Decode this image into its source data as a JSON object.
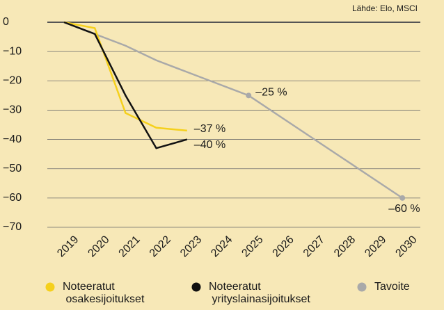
{
  "chart_data": {
    "type": "line",
    "source": "Lähde: Elo, MSCI",
    "categories": [
      "2019",
      "2020",
      "2021",
      "2022",
      "2023",
      "2024",
      "2025",
      "2026",
      "2027",
      "2028",
      "2029",
      "2030"
    ],
    "series": [
      {
        "name": "Noteeratut osakesijoitukset",
        "color": "#f5d01c",
        "values": [
          0,
          -2,
          -31,
          -36,
          -37,
          null,
          null,
          null,
          null,
          null,
          null,
          null
        ],
        "value_labels": [
          null,
          null,
          null,
          null,
          "–37 %",
          null,
          null,
          null,
          null,
          null,
          null,
          null
        ]
      },
      {
        "name": "Noteeratut yrityslainasijoitukset",
        "color": "#111111",
        "values": [
          0,
          -4,
          -25,
          -43,
          -40,
          null,
          null,
          null,
          null,
          null,
          null,
          null
        ],
        "value_labels": [
          null,
          null,
          null,
          null,
          "–40 %",
          null,
          null,
          null,
          null,
          null,
          null,
          null
        ]
      },
      {
        "name": "Tavoite",
        "color": "#a9a9a9",
        "values": [
          0,
          -4,
          -8,
          -13,
          -17,
          -21,
          -25,
          -32,
          -39,
          -46,
          -53,
          -60
        ],
        "value_labels": [
          null,
          null,
          null,
          null,
          null,
          null,
          "–25 %",
          null,
          null,
          null,
          null,
          "–60 %"
        ]
      }
    ],
    "ylim": [
      -70,
      0
    ],
    "yticks": [
      0,
      {
        "value": -10,
        "label": "−10"
      },
      {
        "value": -20,
        "label": "−20"
      },
      {
        "value": -30,
        "label": "−30"
      },
      {
        "value": -40,
        "label": "−40"
      },
      {
        "value": -50,
        "label": "−50"
      },
      {
        "value": -60,
        "label": "−60"
      },
      {
        "value": -70,
        "label": "−70"
      }
    ],
    "grid": true
  }
}
